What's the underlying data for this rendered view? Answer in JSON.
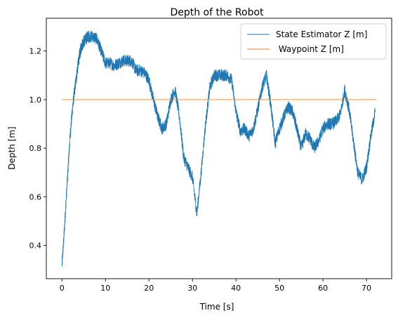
{
  "chart_data": {
    "type": "line",
    "title": "Depth of the Robot",
    "xlabel": "Time [s]",
    "ylabel": "Depth [m]",
    "xlim": [
      -3.6,
      75.8
    ],
    "ylim": [
      0.263,
      1.335
    ],
    "xticks": [
      0,
      10,
      20,
      30,
      40,
      50,
      60,
      70
    ],
    "xtick_labels": [
      "0",
      "10",
      "20",
      "30",
      "40",
      "50",
      "60",
      "70"
    ],
    "yticks": [
      0.4,
      0.6,
      0.8,
      1.0,
      1.2
    ],
    "ytick_labels": [
      "0.4",
      "0.6",
      "0.8",
      "1.0",
      "1.2"
    ],
    "grid": false,
    "legend_position": "top-right",
    "series": [
      {
        "name": "State Estimator Z [m]",
        "color": "#1f77b4",
        "noise": 0.025,
        "x": [
          0,
          0.5,
          1,
          1.5,
          2,
          2.5,
          3,
          3.5,
          4,
          4.5,
          5,
          5.5,
          6,
          7,
          8,
          9,
          10,
          11,
          12,
          13,
          14,
          15,
          16,
          17,
          18,
          19,
          20,
          21,
          22,
          23,
          24,
          25,
          26,
          27,
          28,
          29,
          30,
          31,
          32,
          33,
          34,
          35,
          36,
          37,
          38,
          39,
          40,
          41,
          42,
          43,
          44,
          45,
          46,
          47,
          48,
          49,
          50,
          51,
          52,
          53,
          54,
          55,
          56,
          57,
          58,
          59,
          60,
          61,
          62,
          63,
          64,
          65,
          66,
          67,
          68,
          69,
          70,
          71,
          72
        ],
        "y": [
          0.32,
          0.45,
          0.6,
          0.75,
          0.88,
          0.98,
          1.05,
          1.12,
          1.18,
          1.22,
          1.24,
          1.25,
          1.26,
          1.26,
          1.25,
          1.2,
          1.15,
          1.15,
          1.14,
          1.15,
          1.16,
          1.16,
          1.16,
          1.12,
          1.12,
          1.11,
          1.08,
          1.0,
          0.93,
          0.88,
          0.9,
          1.0,
          1.04,
          0.93,
          0.76,
          0.72,
          0.68,
          0.53,
          0.7,
          0.9,
          1.05,
          1.1,
          1.1,
          1.1,
          1.1,
          1.08,
          0.95,
          0.87,
          0.88,
          0.85,
          0.88,
          0.96,
          1.05,
          1.1,
          0.98,
          0.82,
          0.88,
          0.93,
          0.97,
          0.95,
          0.88,
          0.8,
          0.86,
          0.84,
          0.8,
          0.83,
          0.88,
          0.9,
          0.9,
          0.91,
          0.94,
          1.04,
          0.96,
          0.83,
          0.7,
          0.67,
          0.72,
          0.85,
          0.95
        ]
      },
      {
        "name": " Waypoint Z [m]",
        "color": "#ff7f0e",
        "x": [
          0,
          72.3
        ],
        "y": [
          1.0,
          1.0
        ]
      }
    ]
  }
}
